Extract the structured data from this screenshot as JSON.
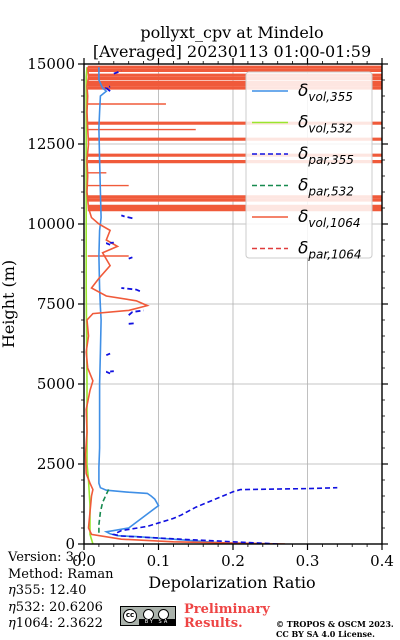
{
  "chart_data": {
    "type": "line",
    "title": [
      "pollyxt_cpv at Mindelo",
      "[Averaged] 20230113 01:00-01:59"
    ],
    "xlabel": "Depolarization Ratio",
    "ylabel": "Height (m)",
    "xlim": [
      0,
      0.4
    ],
    "ylim": [
      0,
      15000
    ],
    "xticks": [
      "0.0",
      "0.1",
      "0.2",
      "0.3",
      "0.4"
    ],
    "yticks": [
      "0",
      "2500",
      "5000",
      "7500",
      "10000",
      "12500",
      "15000"
    ],
    "grid": true,
    "legend_position": "top-right",
    "series": [
      {
        "name": "δvol,355",
        "legend_base": "δ",
        "legend_sub": "vol,355",
        "color": "#3f8fe6",
        "dash": "solid",
        "points": [
          [
            0.215,
            0
          ],
          [
            0.17,
            60
          ],
          [
            0.12,
            150
          ],
          [
            0.07,
            230
          ],
          [
            0.045,
            260
          ],
          [
            0.035,
            320
          ],
          [
            0.03,
            380
          ],
          [
            0.04,
            420
          ],
          [
            0.06,
            500
          ],
          [
            0.1,
            1200
          ],
          [
            0.095,
            1400
          ],
          [
            0.09,
            1500
          ],
          [
            0.085,
            1580
          ],
          [
            0.06,
            1620
          ],
          [
            0.03,
            1680
          ],
          [
            0.022,
            1760
          ],
          [
            0.02,
            1900
          ],
          [
            0.02,
            2400
          ],
          [
            0.021,
            3000
          ],
          [
            0.021,
            4000
          ],
          [
            0.021,
            5000
          ],
          [
            0.022,
            6000
          ],
          [
            0.023,
            7000
          ],
          [
            0.022,
            7400
          ],
          [
            0.021,
            8000
          ],
          [
            0.02,
            9000
          ],
          [
            0.021,
            9800
          ],
          [
            0.023,
            10200
          ],
          [
            0.022,
            11000
          ],
          [
            0.021,
            12000
          ],
          [
            0.02,
            13000
          ],
          [
            0.021,
            13500
          ],
          [
            0.022,
            14000
          ],
          [
            0.03,
            14150
          ],
          [
            0.025,
            14250
          ],
          [
            0.02,
            14500
          ],
          [
            0.02,
            14900
          ]
        ]
      },
      {
        "name": "δvol,532",
        "legend_base": "δ",
        "legend_sub": "vol,532",
        "color": "#99e62e",
        "dash": "solid",
        "points": [
          [
            0.012,
            0
          ],
          [
            0.008,
            300
          ],
          [
            0.008,
            1200
          ],
          [
            0.006,
            2000
          ],
          [
            0.004,
            2500
          ],
          [
            0.004,
            5000
          ],
          [
            0.003,
            8000
          ],
          [
            0.003,
            10000
          ],
          [
            0.003,
            12500
          ],
          [
            0.003,
            14600
          ],
          [
            0.004,
            14900
          ]
        ]
      },
      {
        "name": "δpar,355",
        "legend_base": "δ",
        "legend_sub": "par,355",
        "color": "#1010e0",
        "dash": "dashed",
        "points": [
          [
            0.26,
            0
          ],
          [
            0.13,
            150
          ],
          [
            0.05,
            250
          ],
          [
            0.04,
            300
          ],
          [
            0.05,
            420
          ],
          [
            0.085,
            550
          ],
          [
            0.12,
            800
          ],
          [
            0.13,
            900
          ],
          [
            0.15,
            1150
          ],
          [
            0.2,
            1630
          ],
          [
            0.21,
            1700
          ],
          [
            0.3,
            1730
          ],
          [
            0.34,
            1760
          ]
        ]
      },
      {
        "name": "δpar,532",
        "legend_base": "δ",
        "legend_sub": "par,532",
        "color": "#178a4f",
        "dash": "dashed",
        "points": [
          [
            0.02,
            350
          ],
          [
            0.02,
            600
          ],
          [
            0.022,
            1000
          ],
          [
            0.025,
            1300
          ],
          [
            0.03,
            1550
          ],
          [
            0.034,
            1750
          ]
        ]
      },
      {
        "name": "δvol,1064",
        "legend_base": "δ",
        "legend_sub": "vol,1064",
        "color": "#f05a3a",
        "dash": "solid",
        "points": [
          [
            0.27,
            0
          ],
          [
            0.12,
            70
          ],
          [
            0.05,
            150
          ],
          [
            0.01,
            300
          ],
          [
            0.006,
            500
          ],
          [
            0.008,
            1000
          ],
          [
            0.01,
            1500
          ],
          [
            0.012,
            1700
          ],
          [
            0.008,
            1900
          ],
          [
            0.003,
            2200
          ],
          [
            0.002,
            2800
          ],
          [
            0.004,
            3500
          ],
          [
            0.003,
            4200
          ],
          [
            0.008,
            4800
          ],
          [
            0.012,
            5100
          ],
          [
            0.005,
            5500
          ],
          [
            0.003,
            6000
          ],
          [
            0.006,
            6500
          ],
          [
            0.004,
            7000
          ],
          [
            0.012,
            7200
          ],
          [
            0.06,
            7300
          ],
          [
            0.085,
            7450
          ],
          [
            0.07,
            7600
          ],
          [
            0.03,
            7750
          ],
          [
            0.01,
            8000
          ],
          [
            0.02,
            8300
          ],
          [
            0.035,
            8700
          ],
          [
            0.025,
            9100
          ],
          [
            0.045,
            9300
          ],
          [
            0.03,
            9500
          ],
          [
            0.035,
            9800
          ],
          [
            0.02,
            10000
          ],
          [
            0.01,
            10200
          ],
          [
            0.006,
            10500
          ],
          [
            0.004,
            11000
          ],
          [
            0.005,
            11500
          ],
          [
            0.004,
            12000
          ],
          [
            0.006,
            12500
          ],
          [
            0.005,
            13000
          ],
          [
            0.004,
            13500
          ],
          [
            0.005,
            14000
          ],
          [
            0.004,
            14300
          ],
          [
            0.006,
            14600
          ],
          [
            0.005,
            14900
          ]
        ]
      },
      {
        "name": "δpar,1064",
        "legend_base": "δ",
        "legend_sub": "par,1064",
        "color": "#e03c3c",
        "dash": "dashed",
        "points": []
      }
    ],
    "par355_segments": [
      [
        [
          0.065,
          10180
        ],
        [
          0.055,
          10230
        ],
        [
          0.05,
          10270
        ]
      ],
      [
        [
          0.035,
          9350
        ],
        [
          0.03,
          9400
        ],
        [
          0.04,
          9420
        ]
      ],
      [
        [
          0.06,
          8920
        ],
        [
          0.065,
          8960
        ]
      ],
      [
        [
          0.075,
          7900
        ],
        [
          0.07,
          7950
        ],
        [
          0.05,
          8000
        ]
      ],
      [
        [
          0.06,
          7150
        ],
        [
          0.065,
          7250
        ],
        [
          0.08,
          7300
        ]
      ],
      [
        [
          0.06,
          6880
        ],
        [
          0.07,
          6900
        ]
      ],
      [
        [
          0.03,
          5900
        ],
        [
          0.035,
          5950
        ]
      ],
      [
        [
          0.035,
          5330
        ],
        [
          0.03,
          5380
        ],
        [
          0.04,
          5400
        ]
      ],
      [
        [
          0.04,
          14700
        ],
        [
          0.045,
          14740
        ],
        [
          0.05,
          14800
        ]
      ],
      [
        [
          0.035,
          14150
        ],
        [
          0.03,
          14250
        ],
        [
          0.035,
          14300
        ]
      ]
    ],
    "vol1064_spikes": [
      14900,
      14800,
      14650,
      14550,
      14430,
      14350,
      14250,
      13150,
      12650,
      12150,
      11950,
      10850,
      10750,
      10550,
      10450
    ],
    "vol1064_short": [
      [
        13750,
        0.11
      ],
      [
        12950,
        0.15
      ],
      [
        11600,
        0.03
      ],
      [
        11200,
        0.06
      ],
      [
        9000,
        0.06
      ]
    ]
  },
  "footer": {
    "version": "Version: 3.0",
    "method": "Method: Raman",
    "eta": [
      {
        "sym": "η",
        "sub": "355",
        "value": ":  12.40"
      },
      {
        "sym": "η",
        "sub": "532",
        "value": ": 20.6206"
      },
      {
        "sym": "η",
        "sub": "1064",
        "value": ": 2.3622"
      }
    ],
    "preliminary": [
      "Preliminary",
      "Results."
    ],
    "copyright": [
      "© TROPOS & OSCM 2023.",
      "CC BY SA 4.0 License."
    ]
  },
  "badge": {
    "cc": "cc",
    "strip": "BY SA"
  }
}
